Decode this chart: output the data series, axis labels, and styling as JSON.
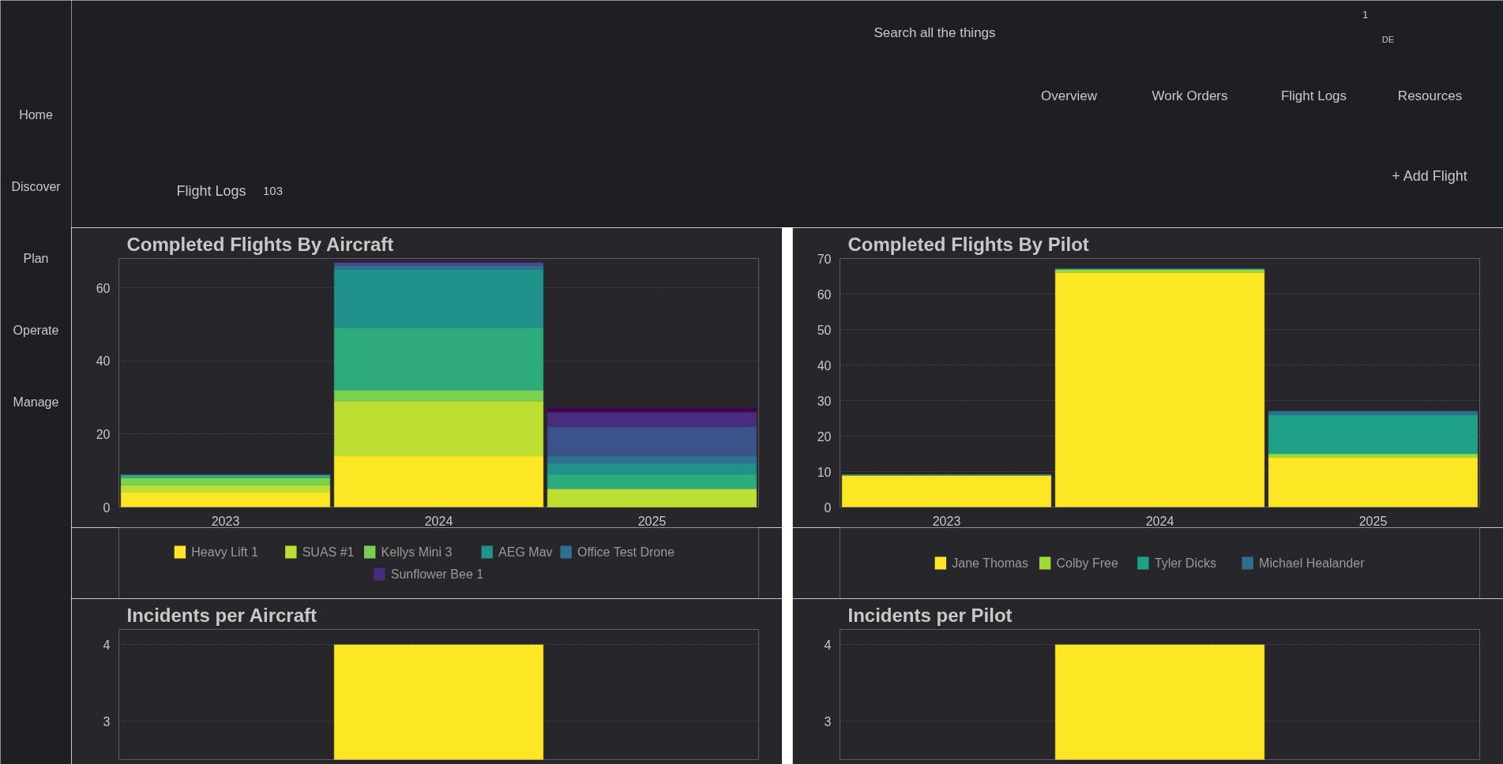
{
  "chart_data": [
    {
      "type": "other",
      "annotations": [
        "Home",
        "Discover",
        "Plan",
        "Operate",
        "Manage"
      ]
    },
    {
      "type": "other",
      "annotations": [
        "Search all the things",
        "1",
        "DE",
        "Overview",
        "Work Orders",
        "Flight Logs",
        "Resources",
        "Flight Logs",
        "103",
        "+ Add Flight"
      ]
    },
    {
      "type": "bar",
      "title": "Completed Flights By Aircraft",
      "stacked": true,
      "categories": [
        "2023",
        "2024",
        "2025"
      ],
      "ylim": [
        0,
        68
      ],
      "yticks": [
        0,
        20,
        40,
        60
      ],
      "grid": "y",
      "legend": "bottom",
      "series": [
        {
          "name": "Heavy Lift 1",
          "color": "#fde725",
          "values": [
            4,
            14,
            0
          ]
        },
        {
          "name": "SUAS #1",
          "color": "#bddf34",
          "values": [
            2,
            15,
            5
          ]
        },
        {
          "name": "Kellys Mini 3",
          "color": "#7ad151",
          "values": [
            2,
            3,
            0
          ]
        },
        {
          "name": null,
          "color": "#2eab7b",
          "values": [
            1,
            17,
            4
          ]
        },
        {
          "name": "AEG Mav",
          "color": "#21918c",
          "values": [
            0,
            16,
            3
          ]
        },
        {
          "name": "Office Test Drone",
          "color": "#2c728e",
          "values": [
            0,
            1,
            2
          ]
        },
        {
          "name": null,
          "color": "#3b528b",
          "values": [
            0,
            1,
            8
          ]
        },
        {
          "name": "Sunflower Bee 1",
          "color": "#472d7b",
          "values": [
            0,
            0,
            4
          ]
        },
        {
          "name": null,
          "color": "#440154",
          "values": [
            0,
            0,
            1
          ]
        }
      ]
    },
    {
      "type": "bar",
      "title": "Completed Flights By Pilot",
      "stacked": true,
      "categories": [
        "2023",
        "2024",
        "2025"
      ],
      "ylim": [
        0,
        70
      ],
      "yticks": [
        0,
        10,
        20,
        30,
        40,
        50,
        60,
        70
      ],
      "grid": "y",
      "legend": "bottom",
      "series": [
        {
          "name": "Jane Thomas",
          "color": "#fde725",
          "values": [
            9,
            66,
            14
          ]
        },
        {
          "name": "Colby Free",
          "color": "#a0da39",
          "values": [
            0,
            1,
            1
          ]
        },
        {
          "name": "Tyler Dicks",
          "color": "#1fa187",
          "values": [
            0,
            0,
            11
          ]
        },
        {
          "name": "Michael Healander",
          "color": "#2c6f8e",
          "values": [
            0,
            0,
            1
          ]
        }
      ]
    },
    {
      "type": "bar",
      "title": "Incidents per Aircraft",
      "categories": [
        null,
        null,
        null
      ],
      "values": [
        null,
        4,
        null
      ],
      "color": "#fde725",
      "ylim": [
        2.5,
        4.2
      ],
      "yticks": [
        3,
        4
      ],
      "grid": "y",
      "tick_labels": "y"
    },
    {
      "type": "bar",
      "title": "Incidents per Pilot",
      "categories": [
        null,
        null,
        null
      ],
      "values": [
        null,
        4,
        null
      ],
      "color": "#fde725",
      "ylim": [
        2.5,
        4.2
      ],
      "yticks": [
        3,
        4
      ],
      "grid": "y",
      "tick_labels": "y"
    }
  ]
}
